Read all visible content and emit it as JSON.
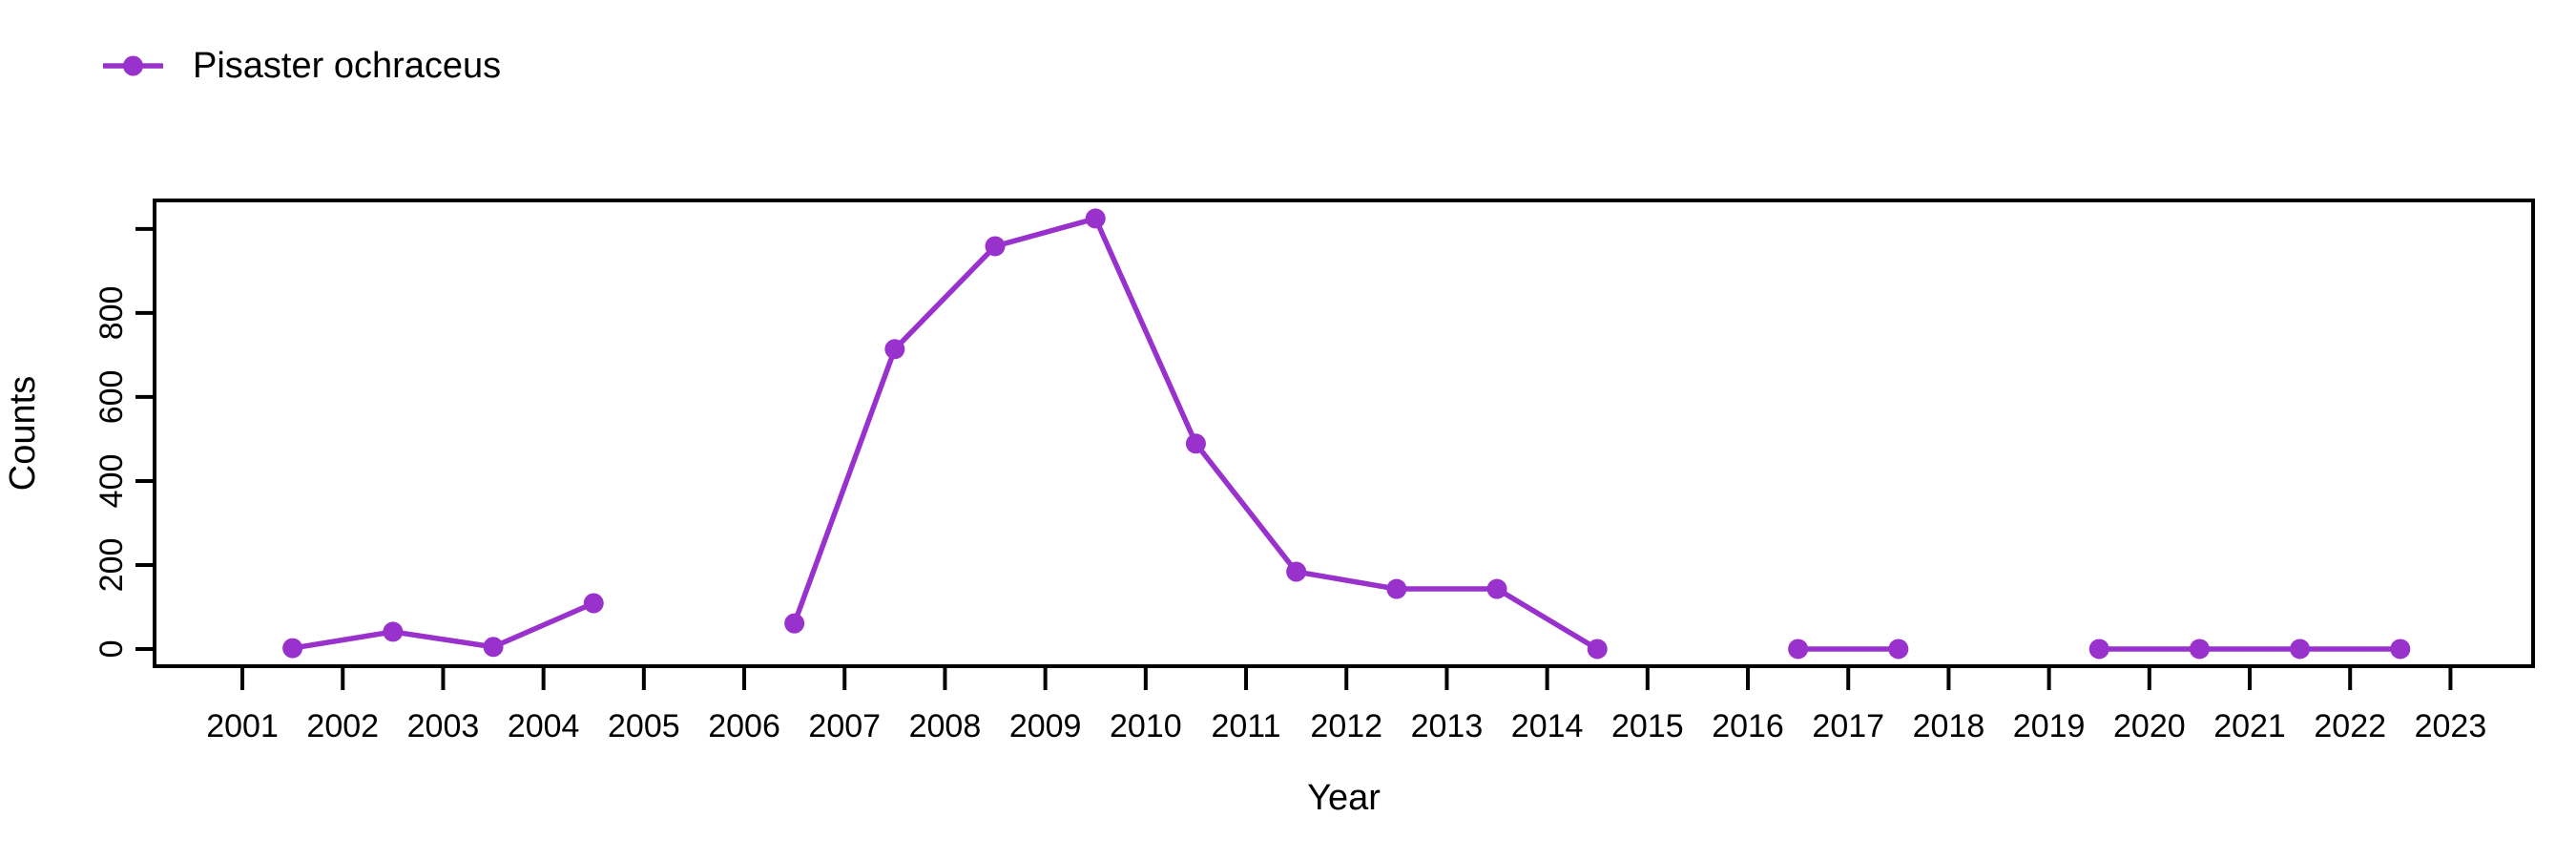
{
  "page": {
    "background": "#ffffff",
    "text_color": "#000000"
  },
  "legend": {
    "label": "Pisaster ochraceus"
  },
  "chart_data": {
    "type": "line",
    "title": "",
    "xlabel": "Year",
    "ylabel": "Counts",
    "grid": false,
    "legend_position": "top-left",
    "series_color": "#9932CC",
    "axis_color": "#000000",
    "xlim": [
      2000.125,
      2023.823
    ],
    "ylim": [
      -41,
      1068
    ],
    "x_ticks": [
      2001,
      2002,
      2003,
      2004,
      2005,
      2006,
      2007,
      2008,
      2009,
      2010,
      2011,
      2012,
      2013,
      2014,
      2015,
      2016,
      2017,
      2018,
      2019,
      2020,
      2021,
      2022,
      2023
    ],
    "y_ticks": [
      {
        "value": 0,
        "label": "0"
      },
      {
        "value": 200,
        "label": "200"
      },
      {
        "value": 400,
        "label": "400"
      },
      {
        "value": 600,
        "label": "600"
      },
      {
        "value": 800,
        "label": "800"
      },
      {
        "value": 1000,
        "label": ""
      }
    ],
    "series": [
      {
        "name": "Pisaster ochraceus",
        "color": "#9932CC",
        "marker": "circle",
        "points": [
          [
            2001.5,
            2
          ],
          [
            2002.5,
            41
          ],
          [
            2003.5,
            5
          ],
          [
            2004.5,
            109
          ],
          [
            2005.5,
            null
          ],
          [
            2006.5,
            61
          ],
          [
            2007.5,
            714
          ],
          [
            2008.5,
            959
          ],
          [
            2009.5,
            1025
          ],
          [
            2010.5,
            489
          ],
          [
            2011.5,
            184
          ],
          [
            2012.5,
            143
          ],
          [
            2013.5,
            143
          ],
          [
            2014.5,
            0
          ],
          [
            2015.5,
            null
          ],
          [
            2016.5,
            0
          ],
          [
            2017.5,
            0
          ],
          [
            2018.5,
            null
          ],
          [
            2019.5,
            0
          ],
          [
            2020.5,
            0
          ],
          [
            2021.5,
            0
          ],
          [
            2022.5,
            0
          ]
        ]
      }
    ]
  }
}
